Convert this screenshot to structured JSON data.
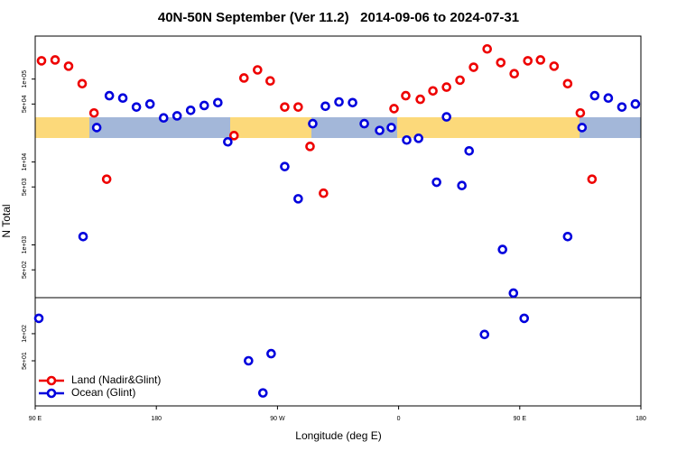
{
  "chart_data": [
    {
      "type": "scatter",
      "title": "40N-50N September (Ver 11.2)   2014-09-06 to 2024-07-31",
      "ylabel": "N Total",
      "log_y": true,
      "legend": "lower left",
      "xlim": [
        90,
        540
      ],
      "ylim": [
        231,
        330000
      ],
      "yticks": [
        {
          "value": 500,
          "label": "5e+02"
        },
        {
          "value": 1000,
          "label": "1e+03"
        },
        {
          "value": 5000,
          "label": "5e+03"
        },
        {
          "value": 10000,
          "label": "1e+04"
        },
        {
          "value": 50000,
          "label": "5e+04"
        },
        {
          "value": 100000,
          "label": "1e+05"
        }
      ],
      "series": [
        {
          "name": "Land (Nadir&Glint)",
          "color": "#ee0000",
          "x": [
            94.7,
            104.8,
            114.8,
            124.9,
            133.7,
            143.1,
            237.7,
            245.1,
            255.2,
            264.6,
            275.4,
            285.4,
            294.2,
            304.2,
            356.6,
            365.3,
            376.1,
            385.5,
            395.6,
            405.6,
            415.7,
            425.8,
            435.9,
            445.9,
            456.0,
            465.4,
            475.5,
            485.6,
            495.0,
            503.7
          ],
          "values": [
            166000,
            170000,
            143000,
            88000,
            39000,
            6200,
            20800,
            103000,
            129000,
            95000,
            46000,
            46000,
            15400,
            4200,
            44000,
            63000,
            57000,
            72000,
            80000,
            97000,
            139000,
            231000,
            158000,
            116000,
            166000,
            170000,
            143000,
            88000,
            39000,
            6200
          ]
        },
        {
          "name": "Ocean (Glint)",
          "color": "#0000dd",
          "x": [
            125.6,
            135.7,
            145.1,
            155.1,
            165.2,
            175.3,
            185.4,
            195.4,
            205.5,
            215.6,
            225.7,
            233.1,
            275.4,
            285.4,
            296.2,
            305.6,
            315.7,
            325.8,
            334.5,
            345.9,
            354.6,
            366.0,
            374.8,
            388.2,
            395.6,
            407.0,
            412.4,
            437.2,
            445.3,
            485.6,
            496.3,
            505.7,
            515.8,
            525.9,
            535.9
          ],
          "values": [
            1260,
            26000,
            63000,
            59000,
            46000,
            50000,
            34000,
            36000,
            42000,
            48000,
            52000,
            17500,
            8800,
            3600,
            29000,
            47000,
            53000,
            52000,
            29000,
            24000,
            26000,
            18400,
            19300,
            5700,
            35000,
            5200,
            13600,
            880,
            262,
            1260,
            26000,
            63000,
            59000,
            46000,
            50000
          ]
        }
      ]
    },
    {
      "type": "scatter",
      "xlabel": "Longitude (deg E)",
      "log_y": true,
      "xlim": [
        90,
        540
      ],
      "ylim": [
        15.8,
        251
      ],
      "xticks": [
        {
          "value": 90,
          "label": "90 E"
        },
        180,
        {
          "value": 270,
          "label": "90 W"
        },
        {
          "value": 360,
          "label": "0"
        },
        {
          "value": 450,
          "label": "90 E"
        },
        {
          "value": 540,
          "label": "180"
        }
      ],
      "yticks": [
        {
          "value": 50,
          "label": "5e+01"
        },
        {
          "value": 100,
          "label": "1e+02"
        }
      ],
      "series": [
        {
          "color": "#0000dd",
          "x": [
            92.7,
            248.5,
            265.3,
            259.2,
            423.8,
            453.3
          ],
          "values": [
            148,
            50,
            60,
            22,
            98,
            148
          ]
        }
      ]
    }
  ]
}
